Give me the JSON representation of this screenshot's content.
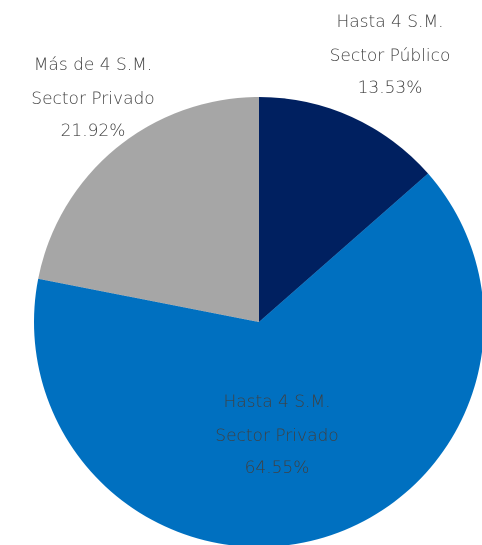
{
  "chart_data": {
    "type": "pie",
    "categories": [
      [
        "Hasta 4 S.M.",
        "Sector Público"
      ],
      [
        "Hasta 4 S.M.",
        "Sector Privado"
      ],
      [
        "Más de 4 S.M.",
        "Sector Privado"
      ]
    ],
    "values": [
      13.53,
      64.55,
      21.92
    ],
    "value_labels": [
      "13.53%",
      "64.55%",
      "21.92%"
    ],
    "colors": [
      "#002060",
      "#0070c0",
      "#a6a6a6"
    ]
  }
}
